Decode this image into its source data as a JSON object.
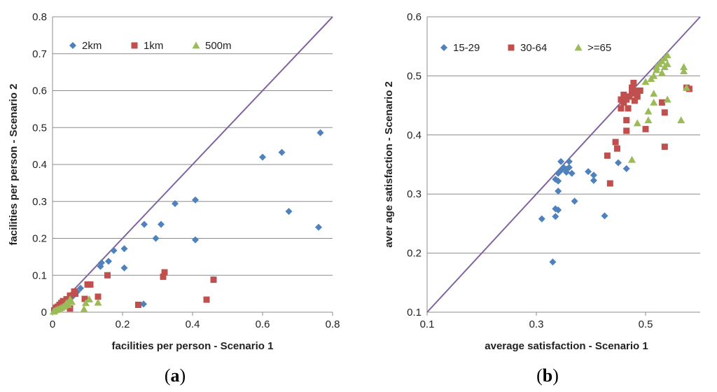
{
  "chart_data": [
    {
      "type": "scatter",
      "panel_label": "a",
      "xlabel": "facilities per person - Scenario 1",
      "ylabel": "facilities per person - Scenario 2",
      "xlim": [
        0,
        0.8
      ],
      "ylim": [
        0,
        0.8
      ],
      "xticks": [
        0,
        0.2,
        0.4,
        0.6,
        0.8
      ],
      "yticks": [
        0,
        0.1,
        0.2,
        0.3,
        0.4,
        0.5,
        0.6,
        0.7,
        0.8
      ],
      "xtick_labels": [
        "0",
        "0.2",
        "0.4",
        "0.6",
        "0.8"
      ],
      "ytick_labels": [
        "0",
        "0.1",
        "0.2",
        "0.3",
        "0.4",
        "0.5",
        "0.6",
        "0.7",
        "0.8"
      ],
      "grid": "horizontal",
      "legend": "top-left",
      "diagonal": [
        [
          0,
          0
        ],
        [
          0.8,
          0.8
        ]
      ],
      "diagonal_color": "#8064a2",
      "series": [
        {
          "name": "2km",
          "marker": "diamond",
          "color": "#4f81bd",
          "points": [
            [
              0.765,
              0.486
            ],
            [
              0.655,
              0.433
            ],
            [
              0.6,
              0.42
            ],
            [
              0.675,
              0.273
            ],
            [
              0.76,
              0.23
            ],
            [
              0.408,
              0.304
            ],
            [
              0.35,
              0.294
            ],
            [
              0.408,
              0.196
            ],
            [
              0.31,
              0.238
            ],
            [
              0.262,
              0.238
            ],
            [
              0.295,
              0.2
            ],
            [
              0.205,
              0.172
            ],
            [
              0.175,
              0.167
            ],
            [
              0.16,
              0.138
            ],
            [
              0.14,
              0.134
            ],
            [
              0.137,
              0.124
            ],
            [
              0.205,
              0.12
            ],
            [
              0.26,
              0.022
            ],
            [
              0.08,
              0.065
            ],
            [
              0.07,
              0.055
            ],
            [
              0.06,
              0.045
            ],
            [
              0.05,
              0.035
            ],
            [
              0.04,
              0.025
            ],
            [
              0.03,
              0.02
            ],
            [
              0.02,
              0.012
            ],
            [
              0.01,
              0.006
            ],
            [
              0.005,
              0.003
            ]
          ]
        },
        {
          "name": "1km",
          "marker": "square",
          "color": "#c0504d",
          "points": [
            [
              0.46,
              0.088
            ],
            [
              0.44,
              0.034
            ],
            [
              0.32,
              0.108
            ],
            [
              0.316,
              0.096
            ],
            [
              0.245,
              0.02
            ],
            [
              0.157,
              0.1
            ],
            [
              0.108,
              0.075
            ],
            [
              0.1,
              0.075
            ],
            [
              0.13,
              0.042
            ],
            [
              0.092,
              0.036
            ],
            [
              0.062,
              0.056
            ],
            [
              0.065,
              0.05
            ],
            [
              0.05,
              0.045
            ],
            [
              0.04,
              0.035
            ],
            [
              0.03,
              0.03
            ],
            [
              0.025,
              0.025
            ],
            [
              0.02,
              0.02
            ],
            [
              0.015,
              0.015
            ],
            [
              0.01,
              0.012
            ],
            [
              0.005,
              0.005
            ],
            [
              0.05,
              0.01
            ],
            [
              0.035,
              0.02
            ]
          ]
        },
        {
          "name": "500m",
          "marker": "triangle",
          "color": "#9bbb59",
          "points": [
            [
              0.13,
              0.026
            ],
            [
              0.09,
              0.008
            ],
            [
              0.095,
              0.025
            ],
            [
              0.105,
              0.035
            ],
            [
              0.05,
              0.035
            ],
            [
              0.055,
              0.028
            ],
            [
              0.045,
              0.02
            ],
            [
              0.04,
              0.025
            ],
            [
              0.035,
              0.018
            ],
            [
              0.03,
              0.015
            ],
            [
              0.025,
              0.012
            ],
            [
              0.02,
              0.01
            ],
            [
              0.015,
              0.008
            ],
            [
              0.01,
              0.006
            ],
            [
              0.005,
              0.003
            ],
            [
              0.003,
              0.002
            ]
          ]
        }
      ]
    },
    {
      "type": "scatter",
      "panel_label": "b",
      "xlabel": "average satisfaction - Scenario 1",
      "ylabel": "aver age satisfaction - Scenario 2",
      "xlim": [
        0.1,
        0.6
      ],
      "ylim": [
        0.1,
        0.6
      ],
      "xticks": [
        0.1,
        0.3,
        0.5
      ],
      "yticks": [
        0.1,
        0.2,
        0.3,
        0.4,
        0.5,
        0.6
      ],
      "xtick_labels": [
        "0.1",
        "0.3",
        "0.5"
      ],
      "ytick_labels": [
        "0.1",
        "0.2",
        "0.3",
        "0.4",
        "0.5",
        "0.6"
      ],
      "grid": "horizontal",
      "legend": "top-left",
      "diagonal": [
        [
          0.1,
          0.1
        ],
        [
          0.6,
          0.6
        ]
      ],
      "diagonal_color": "#8064a2",
      "series": [
        {
          "name": "15-29",
          "marker": "diamond",
          "color": "#4f81bd",
          "points": [
            [
              0.33,
              0.185
            ],
            [
              0.31,
              0.258
            ],
            [
              0.335,
              0.262
            ],
            [
              0.335,
              0.275
            ],
            [
              0.34,
              0.273
            ],
            [
              0.34,
              0.305
            ],
            [
              0.335,
              0.325
            ],
            [
              0.34,
              0.322
            ],
            [
              0.345,
              0.34
            ],
            [
              0.35,
              0.345
            ],
            [
              0.345,
              0.355
            ],
            [
              0.355,
              0.342
            ],
            [
              0.36,
              0.345
            ],
            [
              0.36,
              0.355
            ],
            [
              0.365,
              0.335
            ],
            [
              0.37,
              0.288
            ],
            [
              0.395,
              0.338
            ],
            [
              0.405,
              0.332
            ],
            [
              0.405,
              0.323
            ],
            [
              0.425,
              0.263
            ],
            [
              0.45,
              0.353
            ],
            [
              0.465,
              0.343
            ],
            [
              0.34,
              0.335
            ],
            [
              0.355,
              0.337
            ]
          ]
        },
        {
          "name": "30-64",
          "marker": "square",
          "color": "#c0504d",
          "points": [
            [
              0.435,
              0.318
            ],
            [
              0.43,
              0.365
            ],
            [
              0.445,
              0.388
            ],
            [
              0.448,
              0.377
            ],
            [
              0.455,
              0.445
            ],
            [
              0.46,
              0.455
            ],
            [
              0.465,
              0.46
            ],
            [
              0.465,
              0.407
            ],
            [
              0.465,
              0.425
            ],
            [
              0.468,
              0.445
            ],
            [
              0.47,
              0.465
            ],
            [
              0.475,
              0.47
            ],
            [
              0.475,
              0.48
            ],
            [
              0.478,
              0.488
            ],
            [
              0.48,
              0.475
            ],
            [
              0.48,
              0.458
            ],
            [
              0.485,
              0.465
            ],
            [
              0.49,
              0.475
            ],
            [
              0.5,
              0.41
            ],
            [
              0.535,
              0.38
            ],
            [
              0.53,
              0.455
            ],
            [
              0.535,
              0.438
            ],
            [
              0.575,
              0.48
            ],
            [
              0.58,
              0.478
            ],
            [
              0.455,
              0.46
            ],
            [
              0.46,
              0.468
            ]
          ]
        },
        {
          "name": ">=65",
          "marker": "triangle",
          "color": "#9bbb59",
          "points": [
            [
              0.475,
              0.358
            ],
            [
              0.485,
              0.42
            ],
            [
              0.505,
              0.425
            ],
            [
              0.505,
              0.44
            ],
            [
              0.5,
              0.49
            ],
            [
              0.51,
              0.495
            ],
            [
              0.515,
              0.5
            ],
            [
              0.515,
              0.455
            ],
            [
              0.515,
              0.47
            ],
            [
              0.52,
              0.515
            ],
            [
              0.52,
              0.51
            ],
            [
              0.525,
              0.52
            ],
            [
              0.53,
              0.525
            ],
            [
              0.535,
              0.53
            ],
            [
              0.535,
              0.515
            ],
            [
              0.54,
              0.535
            ],
            [
              0.54,
              0.52
            ],
            [
              0.54,
              0.46
            ],
            [
              0.565,
              0.425
            ],
            [
              0.57,
              0.515
            ],
            [
              0.57,
              0.508
            ],
            [
              0.575,
              0.48
            ],
            [
              0.53,
              0.505
            ]
          ]
        }
      ]
    }
  ]
}
